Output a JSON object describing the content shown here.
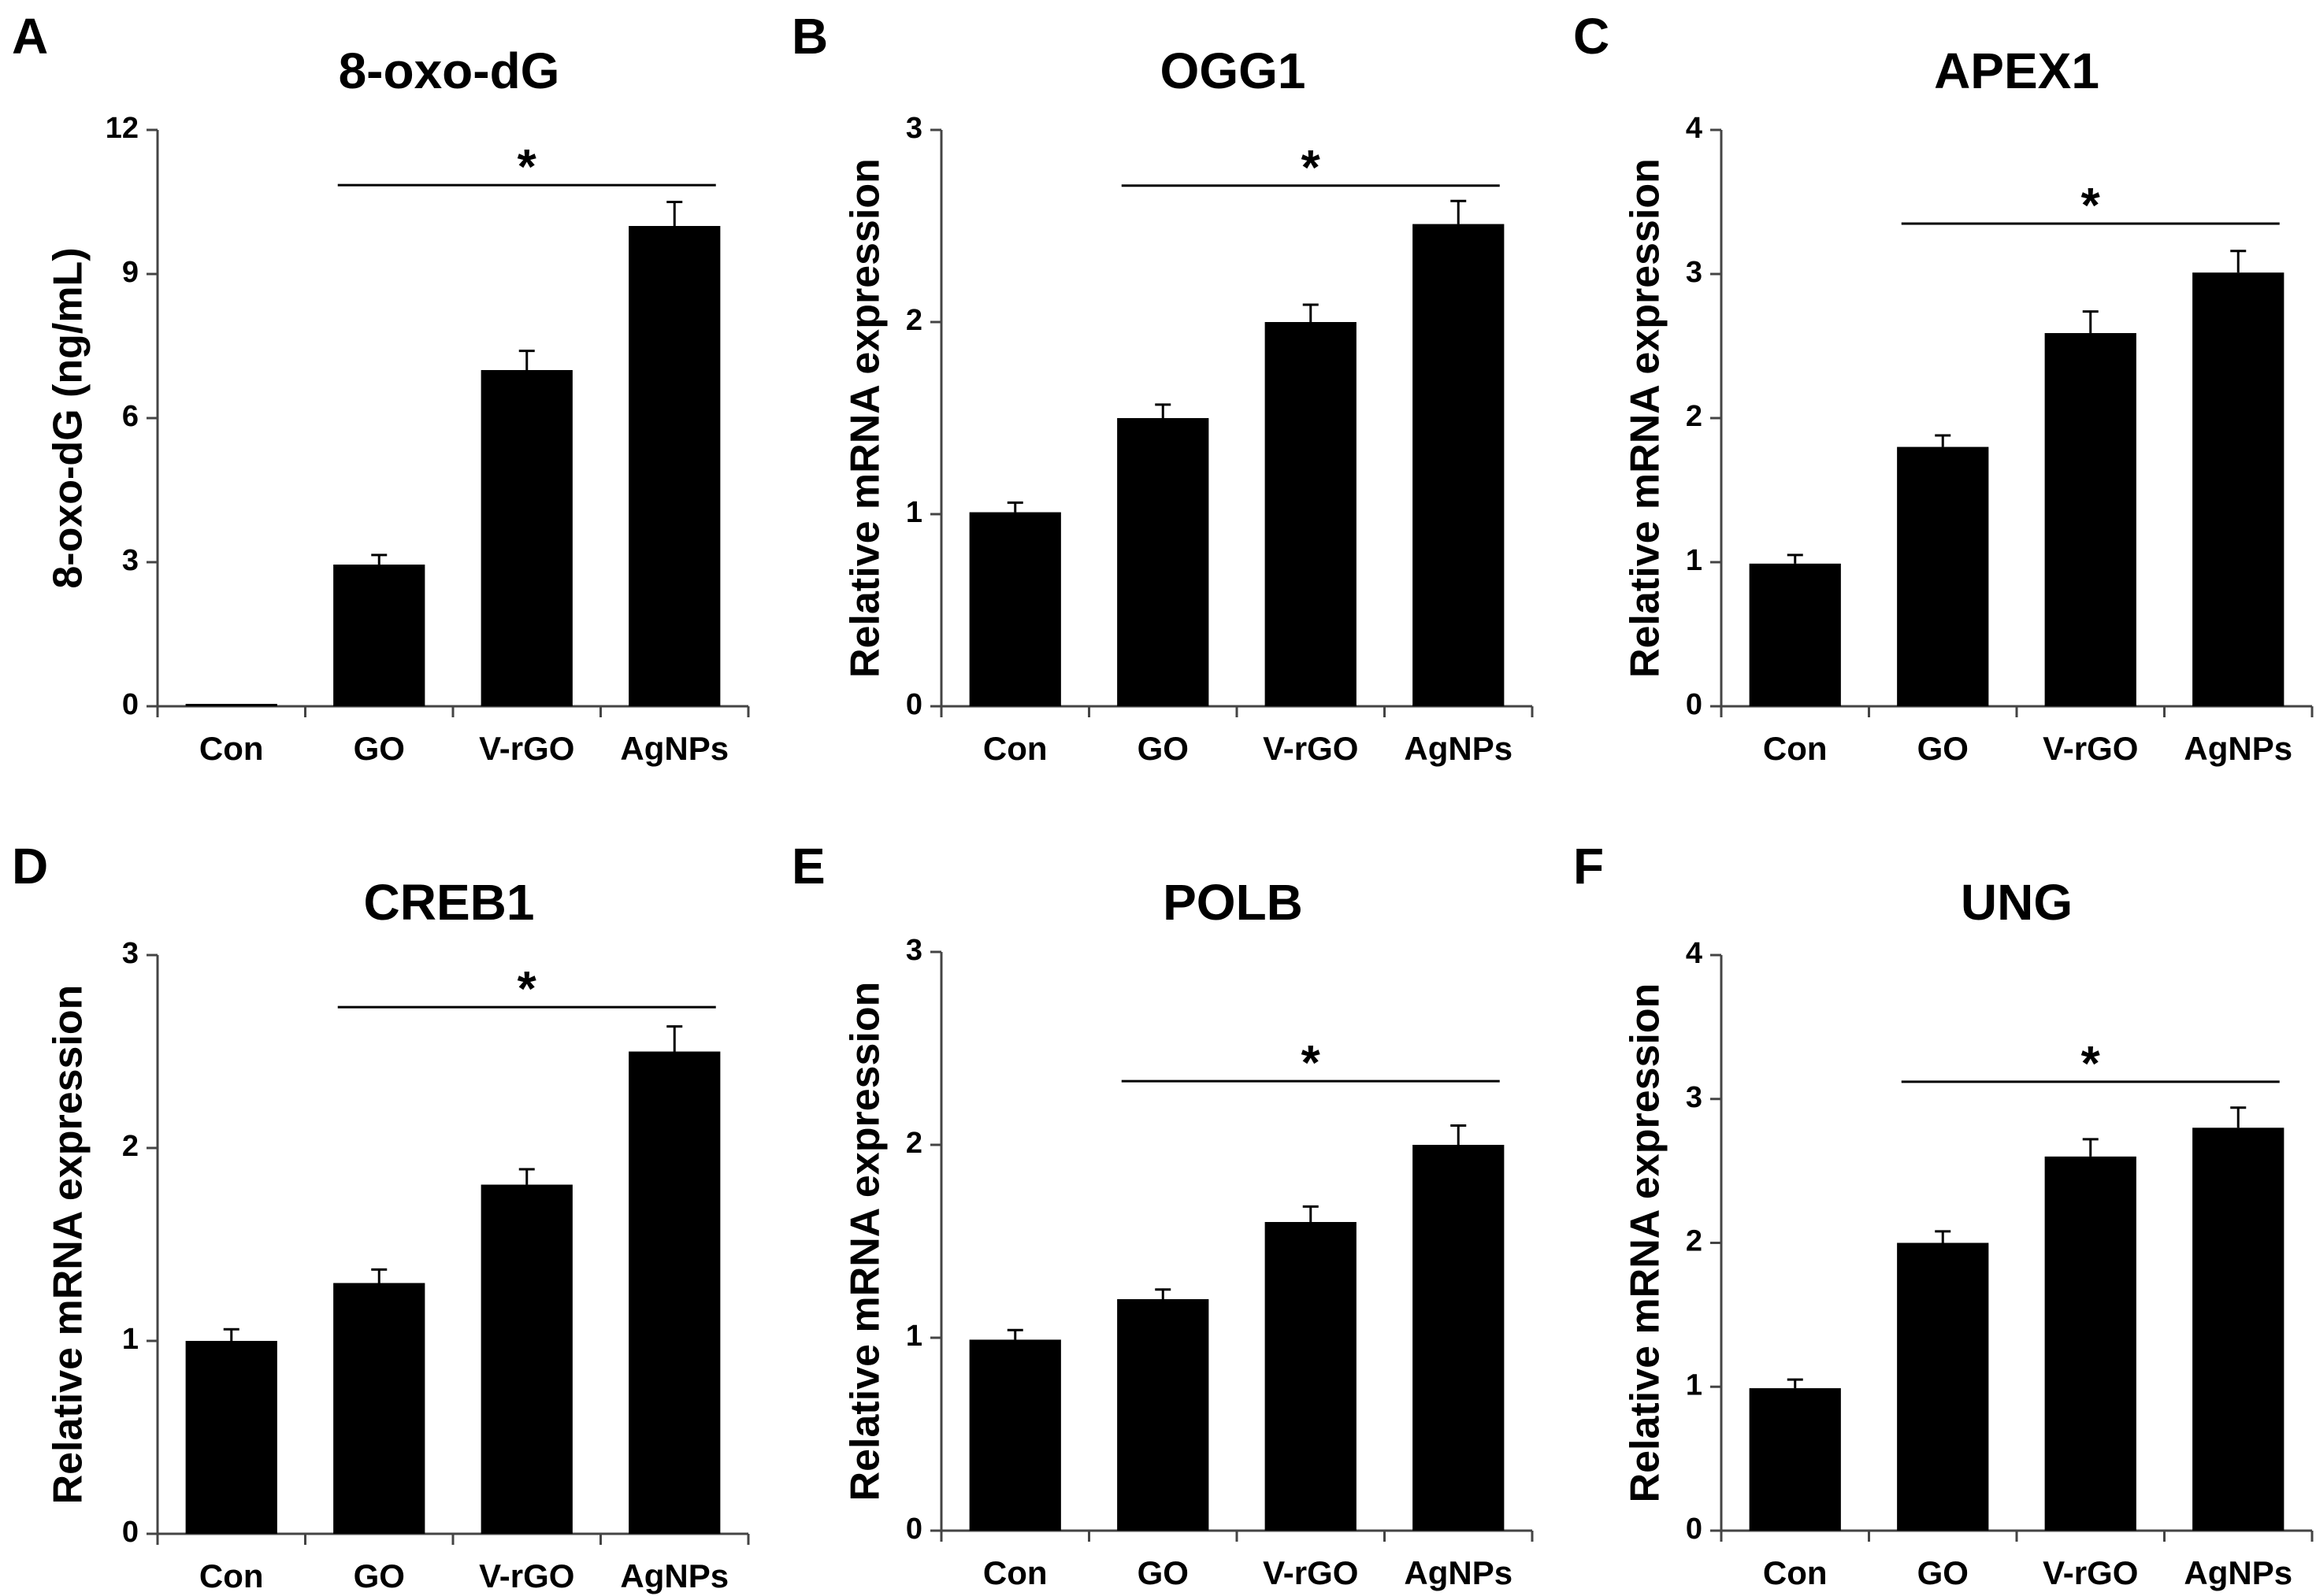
{
  "chart_data": [
    {
      "type": "bar",
      "panel": "A",
      "title": "8-oxo-dG",
      "xlabel": "",
      "ylabel": "8-oxo-dG (ng/mL)",
      "categories": [
        "Con",
        "GO",
        "V-rGO",
        "AgNPs"
      ],
      "values": [
        0.05,
        2.95,
        7.0,
        10.0
      ],
      "errors": [
        0.0,
        0.2,
        0.4,
        0.5
      ],
      "ylim": [
        0,
        12
      ],
      "yticks": [
        0,
        3,
        6,
        9,
        12
      ],
      "significance": {
        "from": "GO",
        "to": "AgNPs",
        "y": 10.85,
        "label": "*"
      },
      "bar_color": "#000000",
      "grid": false
    },
    {
      "type": "bar",
      "panel": "B",
      "title": "OGG1",
      "xlabel": "",
      "ylabel": "Relative mRNA expression",
      "categories": [
        "Con",
        "GO",
        "V-rGO",
        "AgNPs"
      ],
      "values": [
        1.01,
        1.5,
        2.0,
        2.51
      ],
      "errors": [
        0.05,
        0.07,
        0.09,
        0.12
      ],
      "ylim": [
        0,
        3
      ],
      "yticks": [
        0,
        1,
        2,
        3
      ],
      "significance": {
        "from": "GO",
        "to": "AgNPs",
        "y": 2.71,
        "label": "*"
      },
      "bar_color": "#000000",
      "grid": false
    },
    {
      "type": "bar",
      "panel": "C",
      "title": "APEX1",
      "xlabel": "",
      "ylabel": "Relative mRNA expression",
      "categories": [
        "Con",
        "GO",
        "V-rGO",
        "AgNPs"
      ],
      "values": [
        0.99,
        1.8,
        2.59,
        3.01
      ],
      "errors": [
        0.06,
        0.08,
        0.15,
        0.15
      ],
      "ylim": [
        0,
        4
      ],
      "yticks": [
        0,
        1,
        2,
        3,
        4
      ],
      "significance": {
        "from": "GO",
        "to": "AgNPs",
        "y": 3.35,
        "label": "*"
      },
      "bar_color": "#000000",
      "grid": false
    },
    {
      "type": "bar",
      "panel": "D",
      "title": "CREB1",
      "xlabel": "",
      "ylabel": "Relative mRNA expression",
      "categories": [
        "Con",
        "GO",
        "V-rGO",
        "AgNPs"
      ],
      "values": [
        1.0,
        1.3,
        1.81,
        2.5
      ],
      "errors": [
        0.06,
        0.07,
        0.08,
        0.13
      ],
      "ylim": [
        0,
        3
      ],
      "yticks": [
        0,
        1,
        2,
        3
      ],
      "significance": {
        "from": "GO",
        "to": "AgNPs",
        "y": 2.73,
        "label": "*"
      },
      "bar_color": "#000000",
      "grid": false
    },
    {
      "type": "bar",
      "panel": "E",
      "title": "POLB",
      "xlabel": "",
      "ylabel": "Relative mRNA expression",
      "categories": [
        "Con",
        "GO",
        "V-rGO",
        "AgNPs"
      ],
      "values": [
        0.99,
        1.2,
        1.6,
        2.0
      ],
      "errors": [
        0.05,
        0.05,
        0.08,
        0.1
      ],
      "ylim": [
        0,
        3
      ],
      "yticks": [
        0,
        1,
        2,
        3
      ],
      "significance": {
        "from": "GO",
        "to": "AgNPs",
        "y": 2.33,
        "label": "*"
      },
      "bar_color": "#000000",
      "grid": false
    },
    {
      "type": "bar",
      "panel": "F",
      "title": "UNG",
      "xlabel": "",
      "ylabel": "Relative mRNA expression",
      "categories": [
        "Con",
        "GO",
        "V-rGO",
        "AgNPs"
      ],
      "values": [
        0.99,
        2.0,
        2.6,
        2.8
      ],
      "errors": [
        0.06,
        0.08,
        0.12,
        0.14
      ],
      "ylim": [
        0,
        4
      ],
      "yticks": [
        0,
        1,
        2,
        3,
        4
      ],
      "significance": {
        "from": "GO",
        "to": "AgNPs",
        "y": 3.12,
        "label": "*"
      },
      "bar_color": "#000000",
      "grid": false
    }
  ]
}
